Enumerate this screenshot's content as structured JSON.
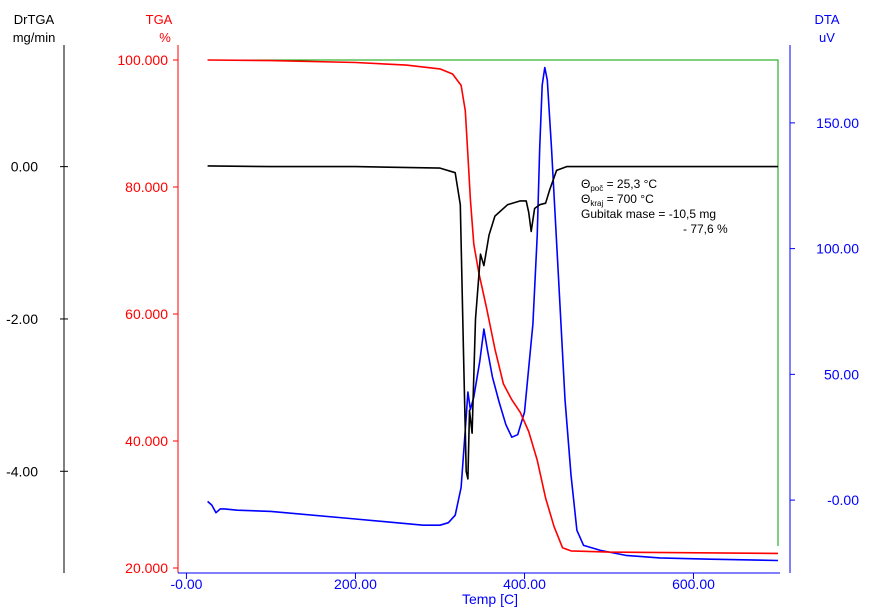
{
  "chart_data": {
    "type": "line",
    "x": {
      "label": "Temp  [C]",
      "range": [
        -10,
        700
      ],
      "ticks": [
        0,
        200,
        400,
        600
      ],
      "tick_labels": [
        "-0.00",
        "200.00",
        "400.00",
        "600.00"
      ]
    },
    "axes": {
      "drtga": {
        "title": "DrTGA",
        "unit": "mg/min",
        "range": [
          -5.27,
          1.4
        ],
        "ticks": [
          0,
          -2,
          -4
        ],
        "tick_labels": [
          "0.00",
          "-2.00",
          "-4.00"
        ],
        "color": "#000000"
      },
      "tga": {
        "title": "TGA",
        "unit": "%",
        "range": [
          20,
          100
        ],
        "ticks": [
          100,
          80,
          60,
          40,
          20
        ],
        "tick_labels": [
          "100.000",
          "80.000",
          "60.000",
          "40.000",
          "20.000"
        ],
        "color": "#ff0000"
      },
      "dta": {
        "title": "DTA",
        "unit": "uV",
        "range": [
          -27,
          175
        ],
        "ticks": [
          150,
          100,
          50,
          0
        ],
        "tick_labels": [
          "150.00",
          "100.00",
          "50.00",
          "-0.00"
        ],
        "color": "#0000ff"
      }
    },
    "series": [
      {
        "axis": "tga",
        "color": "#ff0000",
        "points": [
          [
            25,
            100
          ],
          [
            100,
            99.9
          ],
          [
            200,
            99.6
          ],
          [
            260,
            99.2
          ],
          [
            300,
            98.6
          ],
          [
            315,
            97.8
          ],
          [
            325,
            96
          ],
          [
            330,
            92
          ],
          [
            333,
            85
          ],
          [
            336,
            78
          ],
          [
            340,
            71
          ],
          [
            346,
            66.5
          ],
          [
            355,
            61
          ],
          [
            365,
            54.5
          ],
          [
            375,
            49
          ],
          [
            385,
            46.5
          ],
          [
            395,
            44.5
          ],
          [
            405,
            41.5
          ],
          [
            415,
            37
          ],
          [
            425,
            31
          ],
          [
            435,
            26.5
          ],
          [
            445,
            23.2
          ],
          [
            455,
            22.7
          ],
          [
            500,
            22.5
          ],
          [
            700,
            22.3
          ]
        ]
      },
      {
        "axis": "drtga",
        "color": "#000000",
        "points": [
          [
            25,
            0.01
          ],
          [
            100,
            0.0
          ],
          [
            200,
            0.0
          ],
          [
            300,
            -0.02
          ],
          [
            318,
            -0.08
          ],
          [
            324,
            -0.5
          ],
          [
            328,
            -2.5
          ],
          [
            331,
            -4.0
          ],
          [
            333,
            -4.1
          ],
          [
            335,
            -3.2
          ],
          [
            338,
            -3.5
          ],
          [
            342,
            -2.0
          ],
          [
            348,
            -1.15
          ],
          [
            352,
            -1.3
          ],
          [
            358,
            -0.9
          ],
          [
            365,
            -0.65
          ],
          [
            380,
            -0.5
          ],
          [
            395,
            -0.45
          ],
          [
            402,
            -0.45
          ],
          [
            405,
            -0.6
          ],
          [
            408,
            -0.85
          ],
          [
            412,
            -0.55
          ],
          [
            418,
            -0.5
          ],
          [
            425,
            -0.48
          ],
          [
            430,
            -0.3
          ],
          [
            438,
            -0.05
          ],
          [
            450,
            0.0
          ],
          [
            550,
            0.0
          ],
          [
            700,
            0.0
          ]
        ]
      },
      {
        "axis": "dta",
        "color": "#0000ff",
        "points": [
          [
            25,
            -0.5
          ],
          [
            30,
            -2
          ],
          [
            35,
            -5
          ],
          [
            40,
            -3.5
          ],
          [
            45,
            -3.5
          ],
          [
            60,
            -4
          ],
          [
            100,
            -4.5
          ],
          [
            200,
            -7.5
          ],
          [
            280,
            -10
          ],
          [
            300,
            -10
          ],
          [
            310,
            -9
          ],
          [
            318,
            -6
          ],
          [
            325,
            5
          ],
          [
            330,
            28
          ],
          [
            333,
            43
          ],
          [
            336,
            36
          ],
          [
            340,
            41
          ],
          [
            347,
            55
          ],
          [
            352,
            68
          ],
          [
            356,
            60
          ],
          [
            362,
            49
          ],
          [
            370,
            39
          ],
          [
            378,
            30
          ],
          [
            385,
            25
          ],
          [
            392,
            26
          ],
          [
            400,
            35
          ],
          [
            410,
            70
          ],
          [
            415,
            105
          ],
          [
            418,
            140
          ],
          [
            421,
            165
          ],
          [
            424,
            172
          ],
          [
            427,
            167
          ],
          [
            432,
            140
          ],
          [
            440,
            90
          ],
          [
            448,
            40
          ],
          [
            455,
            10
          ],
          [
            462,
            -12
          ],
          [
            470,
            -18
          ],
          [
            490,
            -20
          ],
          [
            520,
            -22
          ],
          [
            560,
            -23
          ],
          [
            620,
            -23.5
          ],
          [
            700,
            -24
          ]
        ]
      }
    ],
    "annotation": {
      "lines": [
        {
          "var": "Θ",
          "sub": "poč",
          "text": " = 25,3 °C"
        },
        {
          "var": "Θ",
          "sub": "kraj",
          "text": " = 700 °C"
        },
        {
          "var": "",
          "sub": "",
          "text": "Gubitak mase = -10,5 mg"
        },
        {
          "var": "",
          "sub": "",
          "text": "- 77,6 %"
        }
      ]
    },
    "frame_color": "#00a000"
  }
}
